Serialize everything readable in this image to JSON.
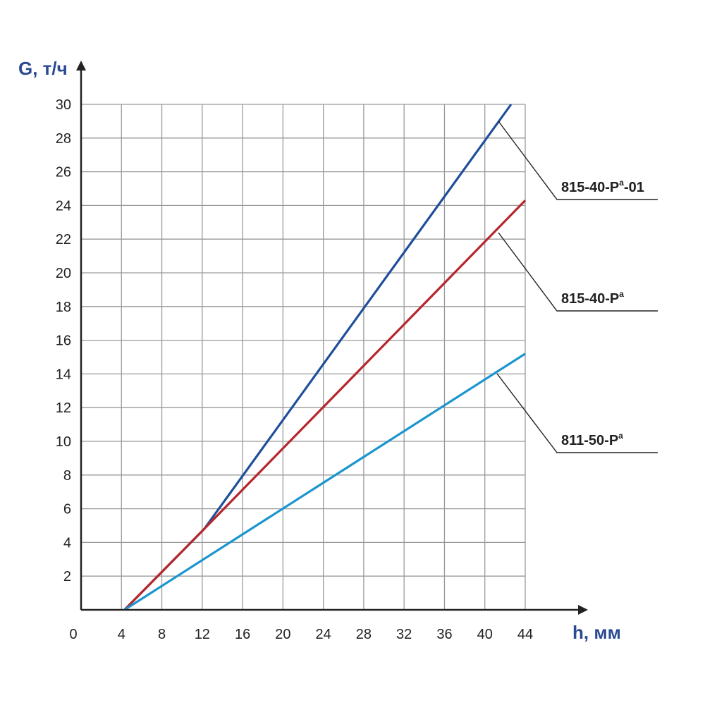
{
  "chart_data": {
    "type": "line",
    "xlabel": "h, мм",
    "ylabel": "G, т/ч",
    "xlim": [
      0,
      44
    ],
    "ylim": [
      0,
      30
    ],
    "xticks": [
      "0",
      "4",
      "8",
      "12",
      "16",
      "20",
      "24",
      "28",
      "32",
      "36",
      "40",
      "44"
    ],
    "yticks": [
      "2",
      "4",
      "6",
      "8",
      "10",
      "12",
      "14",
      "16",
      "18",
      "20",
      "22",
      "24",
      "26",
      "28",
      "30"
    ],
    "grid": true,
    "axis_color": "#2b4a93",
    "series": [
      {
        "name": "815-40-Pa-01",
        "label_main": "815-40-P",
        "label_sup": "a",
        "label_tail": "-01",
        "color": "#1f4e9a",
        "points": [
          [
            4.3,
            0
          ],
          [
            12.2,
            4.8
          ],
          [
            42.6,
            30
          ]
        ]
      },
      {
        "name": "815-40-Pa",
        "label_main": "815-40-P",
        "label_sup": "a",
        "label_tail": "",
        "color": "#b5272d",
        "points": [
          [
            4.3,
            0
          ],
          [
            12.2,
            4.8
          ],
          [
            44,
            24.3
          ]
        ]
      },
      {
        "name": "811-50-Pa",
        "label_main": "811-50-P",
        "label_sup": "a",
        "label_tail": "",
        "color": "#1b95cf",
        "points": [
          [
            4.3,
            0
          ],
          [
            44,
            15.2
          ]
        ]
      }
    ]
  }
}
